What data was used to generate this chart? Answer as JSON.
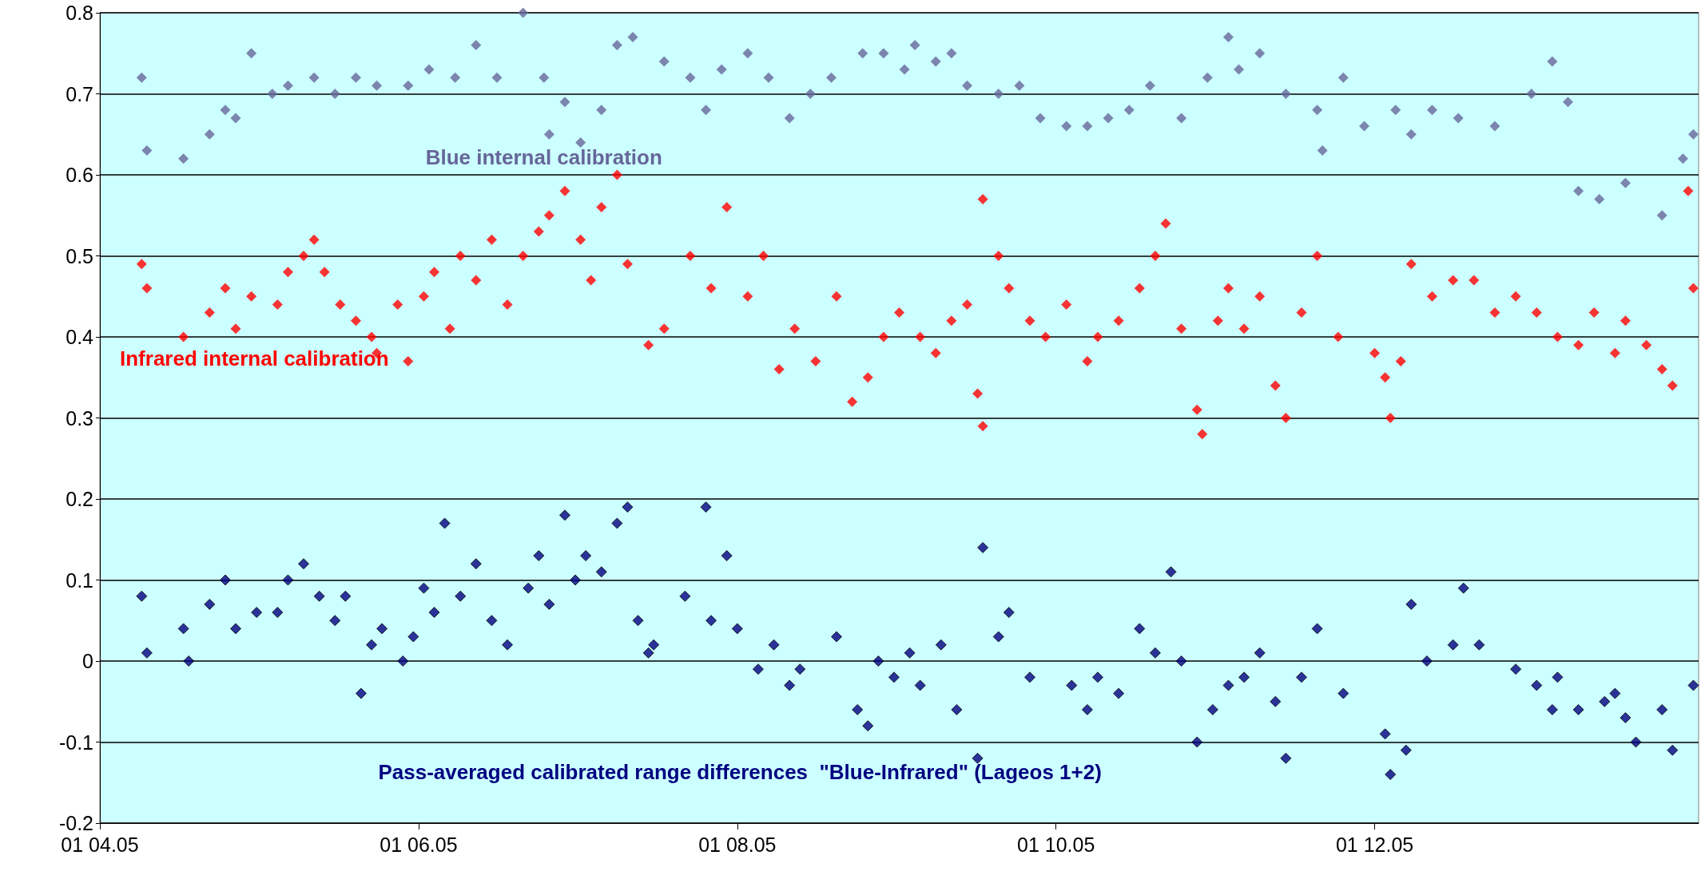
{
  "chart_data": {
    "type": "scatter",
    "marker": "diamond",
    "grid": "y",
    "legend": false,
    "xlim": [
      "2005-04-01",
      "2006-02-01"
    ],
    "xticks": [
      {
        "value": "2005-04-01",
        "label": "01 04.05"
      },
      {
        "value": "2005-06-01",
        "label": "01 06.05"
      },
      {
        "value": "2005-08-01",
        "label": "01 08.05"
      },
      {
        "value": "2005-10-01",
        "label": "01 10.05"
      },
      {
        "value": "2005-12-01",
        "label": "01 12.05"
      }
    ],
    "ylim": [
      -0.2,
      0.8
    ],
    "yticks": [
      -0.2,
      -0.1,
      0,
      0.1,
      0.2,
      0.3,
      0.4,
      0.5,
      0.6,
      0.7,
      0.8
    ],
    "series": [
      {
        "name": "Blue internal calibration",
        "color": "#666699",
        "x": [
          "2005-04-09",
          "2005-04-10",
          "2005-04-17",
          "2005-04-22",
          "2005-04-25",
          "2005-04-27",
          "2005-04-30",
          "2005-05-04",
          "2005-05-07",
          "2005-05-12",
          "2005-05-16",
          "2005-05-20",
          "2005-05-24",
          "2005-05-30",
          "2005-06-03",
          "2005-06-08",
          "2005-06-12",
          "2005-06-16",
          "2005-06-21",
          "2005-06-25",
          "2005-06-26",
          "2005-06-29",
          "2005-07-02",
          "2005-07-06",
          "2005-07-09",
          "2005-07-12",
          "2005-07-18",
          "2005-07-23",
          "2005-07-26",
          "2005-07-29",
          "2005-08-03",
          "2005-08-07",
          "2005-08-11",
          "2005-08-15",
          "2005-08-19",
          "2005-08-25",
          "2005-08-29",
          "2005-09-02",
          "2005-09-04",
          "2005-09-08",
          "2005-09-11",
          "2005-09-14",
          "2005-09-20",
          "2005-09-24",
          "2005-09-28",
          "2005-10-03",
          "2005-10-07",
          "2005-10-11",
          "2005-10-15",
          "2005-10-19",
          "2005-10-25",
          "2005-10-30",
          "2005-11-03",
          "2005-11-05",
          "2005-11-09",
          "2005-11-14",
          "2005-11-20",
          "2005-11-21",
          "2005-11-25",
          "2005-11-29",
          "2005-12-05",
          "2005-12-08",
          "2005-12-12",
          "2005-12-17",
          "2005-12-24",
          "2005-12-31",
          "2006-01-04",
          "2006-01-07",
          "2006-01-09",
          "2006-01-13",
          "2006-01-18",
          "2006-01-25",
          "2006-01-29",
          "2006-01-31"
        ],
        "values": [
          0.72,
          0.63,
          0.62,
          0.65,
          0.68,
          0.67,
          0.75,
          0.7,
          0.71,
          0.72,
          0.7,
          0.72,
          0.71,
          0.71,
          0.73,
          0.72,
          0.76,
          0.72,
          0.8,
          0.72,
          0.65,
          0.69,
          0.64,
          0.68,
          0.76,
          0.77,
          0.74,
          0.72,
          0.68,
          0.73,
          0.75,
          0.72,
          0.67,
          0.7,
          0.72,
          0.75,
          0.75,
          0.73,
          0.76,
          0.74,
          0.75,
          0.71,
          0.7,
          0.71,
          0.67,
          0.66,
          0.66,
          0.67,
          0.68,
          0.71,
          0.67,
          0.72,
          0.77,
          0.73,
          0.75,
          0.7,
          0.68,
          0.63,
          0.72,
          0.66,
          0.68,
          0.65,
          0.68,
          0.67,
          0.66,
          0.7,
          0.74,
          0.69,
          0.58,
          0.57,
          0.59,
          0.55,
          0.62,
          0.65
        ]
      },
      {
        "name": "Infrared internal calibration",
        "color": "#ff0000",
        "x": [
          "2005-04-09",
          "2005-04-10",
          "2005-04-17",
          "2005-04-22",
          "2005-04-25",
          "2005-04-27",
          "2005-04-30",
          "2005-05-05",
          "2005-05-07",
          "2005-05-10",
          "2005-05-12",
          "2005-05-14",
          "2005-05-17",
          "2005-05-20",
          "2005-05-23",
          "2005-05-24",
          "2005-05-28",
          "2005-05-30",
          "2005-06-02",
          "2005-06-04",
          "2005-06-07",
          "2005-06-09",
          "2005-06-12",
          "2005-06-15",
          "2005-06-18",
          "2005-06-21",
          "2005-06-24",
          "2005-06-26",
          "2005-06-29",
          "2005-07-02",
          "2005-07-04",
          "2005-07-06",
          "2005-07-09",
          "2005-07-11",
          "2005-07-15",
          "2005-07-18",
          "2005-07-23",
          "2005-07-27",
          "2005-07-30",
          "2005-08-03",
          "2005-08-06",
          "2005-08-09",
          "2005-08-12",
          "2005-08-16",
          "2005-08-20",
          "2005-08-23",
          "2005-08-26",
          "2005-08-29",
          "2005-09-01",
          "2005-09-05",
          "2005-09-08",
          "2005-09-11",
          "2005-09-14",
          "2005-09-16",
          "2005-09-17",
          "2005-09-17",
          "2005-09-20",
          "2005-09-22",
          "2005-09-26",
          "2005-09-29",
          "2005-10-03",
          "2005-10-07",
          "2005-10-09",
          "2005-10-13",
          "2005-10-17",
          "2005-10-20",
          "2005-10-22",
          "2005-10-25",
          "2005-10-28",
          "2005-10-29",
          "2005-11-01",
          "2005-11-03",
          "2005-11-06",
          "2005-11-09",
          "2005-11-12",
          "2005-11-14",
          "2005-11-17",
          "2005-11-20",
          "2005-11-24",
          "2005-12-01",
          "2005-12-03",
          "2005-12-04",
          "2005-12-06",
          "2005-12-08",
          "2005-12-12",
          "2005-12-16",
          "2005-12-20",
          "2005-12-24",
          "2005-12-28",
          "2006-01-01",
          "2006-01-05",
          "2006-01-09",
          "2006-01-12",
          "2006-01-16",
          "2006-01-18",
          "2006-01-22",
          "2006-01-25",
          "2006-01-27",
          "2006-01-30",
          "2006-01-31"
        ],
        "values": [
          0.49,
          0.46,
          0.4,
          0.43,
          0.46,
          0.41,
          0.45,
          0.44,
          0.48,
          0.5,
          0.52,
          0.48,
          0.44,
          0.42,
          0.4,
          0.38,
          0.44,
          0.37,
          0.45,
          0.48,
          0.41,
          0.5,
          0.47,
          0.52,
          0.44,
          0.5,
          0.53,
          0.55,
          0.58,
          0.52,
          0.47,
          0.56,
          0.6,
          0.49,
          0.39,
          0.41,
          0.5,
          0.46,
          0.56,
          0.45,
          0.5,
          0.36,
          0.41,
          0.37,
          0.45,
          0.32,
          0.35,
          0.4,
          0.43,
          0.4,
          0.38,
          0.42,
          0.44,
          0.33,
          0.29,
          0.57,
          0.5,
          0.46,
          0.42,
          0.4,
          0.44,
          0.37,
          0.4,
          0.42,
          0.46,
          0.5,
          0.54,
          0.41,
          0.31,
          0.28,
          0.42,
          0.46,
          0.41,
          0.45,
          0.34,
          0.3,
          0.43,
          0.5,
          0.4,
          0.38,
          0.35,
          0.3,
          0.37,
          0.49,
          0.45,
          0.47,
          0.47,
          0.43,
          0.45,
          0.43,
          0.4,
          0.39,
          0.43,
          0.38,
          0.42,
          0.39,
          0.36,
          0.34,
          0.58,
          0.46
        ]
      },
      {
        "name": "Pass-averaged calibrated range differences  \"Blue-Infrared\" (Lageos 1+2)",
        "color": "#000080",
        "x": [
          "2005-04-09",
          "2005-04-10",
          "2005-04-17",
          "2005-04-18",
          "2005-04-22",
          "2005-04-25",
          "2005-04-27",
          "2005-05-01",
          "2005-05-05",
          "2005-05-07",
          "2005-05-10",
          "2005-05-13",
          "2005-05-16",
          "2005-05-18",
          "2005-05-21",
          "2005-05-23",
          "2005-05-25",
          "2005-05-29",
          "2005-05-31",
          "2005-06-02",
          "2005-06-04",
          "2005-06-06",
          "2005-06-09",
          "2005-06-12",
          "2005-06-15",
          "2005-06-18",
          "2005-06-22",
          "2005-06-24",
          "2005-06-26",
          "2005-06-29",
          "2005-07-01",
          "2005-07-03",
          "2005-07-06",
          "2005-07-09",
          "2005-07-11",
          "2005-07-13",
          "2005-07-15",
          "2005-07-16",
          "2005-07-22",
          "2005-07-26",
          "2005-07-27",
          "2005-07-30",
          "2005-08-01",
          "2005-08-05",
          "2005-08-08",
          "2005-08-11",
          "2005-08-13",
          "2005-08-20",
          "2005-08-24",
          "2005-08-26",
          "2005-08-28",
          "2005-08-31",
          "2005-09-03",
          "2005-09-05",
          "2005-09-09",
          "2005-09-12",
          "2005-09-16",
          "2005-09-17",
          "2005-09-20",
          "2005-09-22",
          "2005-09-26",
          "2005-10-04",
          "2005-10-07",
          "2005-10-09",
          "2005-10-13",
          "2005-10-17",
          "2005-10-20",
          "2005-10-23",
          "2005-10-25",
          "2005-10-28",
          "2005-10-31",
          "2005-11-03",
          "2005-11-06",
          "2005-11-09",
          "2005-11-12",
          "2005-11-14",
          "2005-11-17",
          "2005-11-20",
          "2005-11-25",
          "2005-12-03",
          "2005-12-04",
          "2005-12-07",
          "2005-12-08",
          "2005-12-11",
          "2005-12-16",
          "2005-12-18",
          "2005-12-21",
          "2005-12-28",
          "2006-01-01",
          "2006-01-04",
          "2006-01-05",
          "2006-01-09",
          "2006-01-14",
          "2006-01-16",
          "2006-01-18",
          "2006-01-20",
          "2006-01-25",
          "2006-01-27",
          "2006-01-31"
        ],
        "values": [
          0.08,
          0.01,
          0.04,
          0,
          0.07,
          0.1,
          0.04,
          0.06,
          0.06,
          0.1,
          0.12,
          0.08,
          0.05,
          0.08,
          -0.04,
          0.02,
          0.04,
          0,
          0.03,
          0.09,
          0.06,
          0.17,
          0.08,
          0.12,
          0.05,
          0.02,
          0.09,
          0.13,
          0.07,
          0.18,
          0.1,
          0.13,
          0.11,
          0.17,
          0.19,
          0.05,
          0.01,
          0.02,
          0.08,
          0.19,
          0.05,
          0.13,
          0.04,
          -0.01,
          0.02,
          -0.03,
          -0.01,
          0.03,
          -0.06,
          -0.08,
          0,
          -0.02,
          0.01,
          -0.03,
          0.02,
          -0.06,
          -0.12,
          0.14,
          0.03,
          0.06,
          -0.02,
          -0.03,
          -0.06,
          -0.02,
          -0.04,
          0.04,
          0.01,
          0.11,
          0,
          -0.1,
          -0.06,
          -0.03,
          -0.02,
          0.01,
          -0.05,
          -0.12,
          -0.02,
          0.04,
          -0.04,
          -0.09,
          -0.14,
          -0.11,
          0.07,
          0,
          0.02,
          0.09,
          0.02,
          -0.01,
          -0.03,
          -0.06,
          -0.02,
          -0.06,
          -0.05,
          -0.04,
          -0.07,
          -0.1,
          -0.06,
          -0.11,
          -0.03
        ]
      }
    ]
  }
}
